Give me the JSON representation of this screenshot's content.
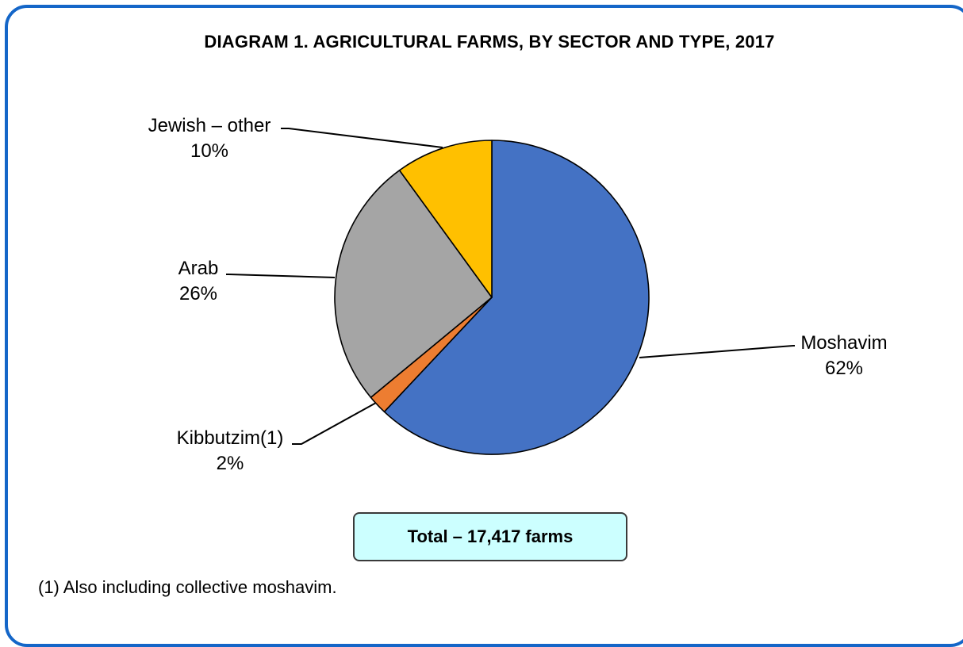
{
  "chart_data": {
    "type": "pie",
    "title": "DIAGRAM 1. AGRICULTURAL FARMS, BY SECTOR AND TYPE, 2017",
    "slices": [
      {
        "name": "Moshavim",
        "label": "Moshavim",
        "value": 62,
        "value_label": "62%",
        "color": "#4472c4"
      },
      {
        "name": "Kibbutzim",
        "label": "Kibbutzim(1)",
        "value": 2,
        "value_label": "2%",
        "color": "#ed7d31"
      },
      {
        "name": "Arab",
        "label": "Arab",
        "value": 26,
        "value_label": "26%",
        "color": "#a5a5a5"
      },
      {
        "name": "Jewish – other",
        "label": "Jewish – other",
        "value": 10,
        "value_label": "10%",
        "color": "#ffc000"
      }
    ],
    "start": "12 o'clock, clockwise",
    "total_label": "Total – 17,417 farms",
    "footnote": "(1) Also including collective moshavim."
  },
  "colors": {
    "frame_border": "#1466c8",
    "total_box_fill": "#ccffff"
  }
}
